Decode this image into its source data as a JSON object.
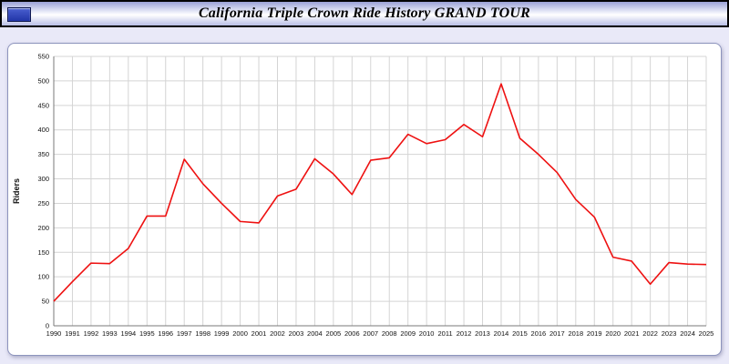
{
  "header": {
    "title": "California Triple Crown Ride History GRAND TOUR"
  },
  "colors": {
    "line": "#ee1111",
    "grid": "#d4d4d4",
    "page_background": "#e9e9f8",
    "panel_background": "#ffffff"
  },
  "chart_data": {
    "type": "line",
    "title": "California Triple Crown Ride History GRAND TOUR",
    "xlabel": "",
    "ylabel": "Riders",
    "ylim": [
      0,
      550
    ],
    "ytick_step": 50,
    "grid": true,
    "legend": "none",
    "categories": [
      1990,
      1991,
      1992,
      1993,
      1994,
      1995,
      1996,
      1997,
      1998,
      1999,
      2000,
      2001,
      2002,
      2003,
      2004,
      2005,
      2006,
      2007,
      2008,
      2009,
      2010,
      2011,
      2012,
      2013,
      2014,
      2015,
      2016,
      2017,
      2018,
      2019,
      2020,
      2021,
      2022,
      2023,
      2024,
      2025
    ],
    "series": [
      {
        "name": "Riders",
        "color": "#ee1111",
        "values": [
          50,
          90,
          128,
          127,
          158,
          224,
          224,
          340,
          290,
          250,
          213,
          210,
          265,
          279,
          341,
          310,
          268,
          338,
          343,
          391,
          372,
          380,
          411,
          386,
          494,
          383,
          350,
          313,
          258,
          222,
          140,
          132,
          85,
          129,
          126,
          125
        ]
      }
    ]
  }
}
